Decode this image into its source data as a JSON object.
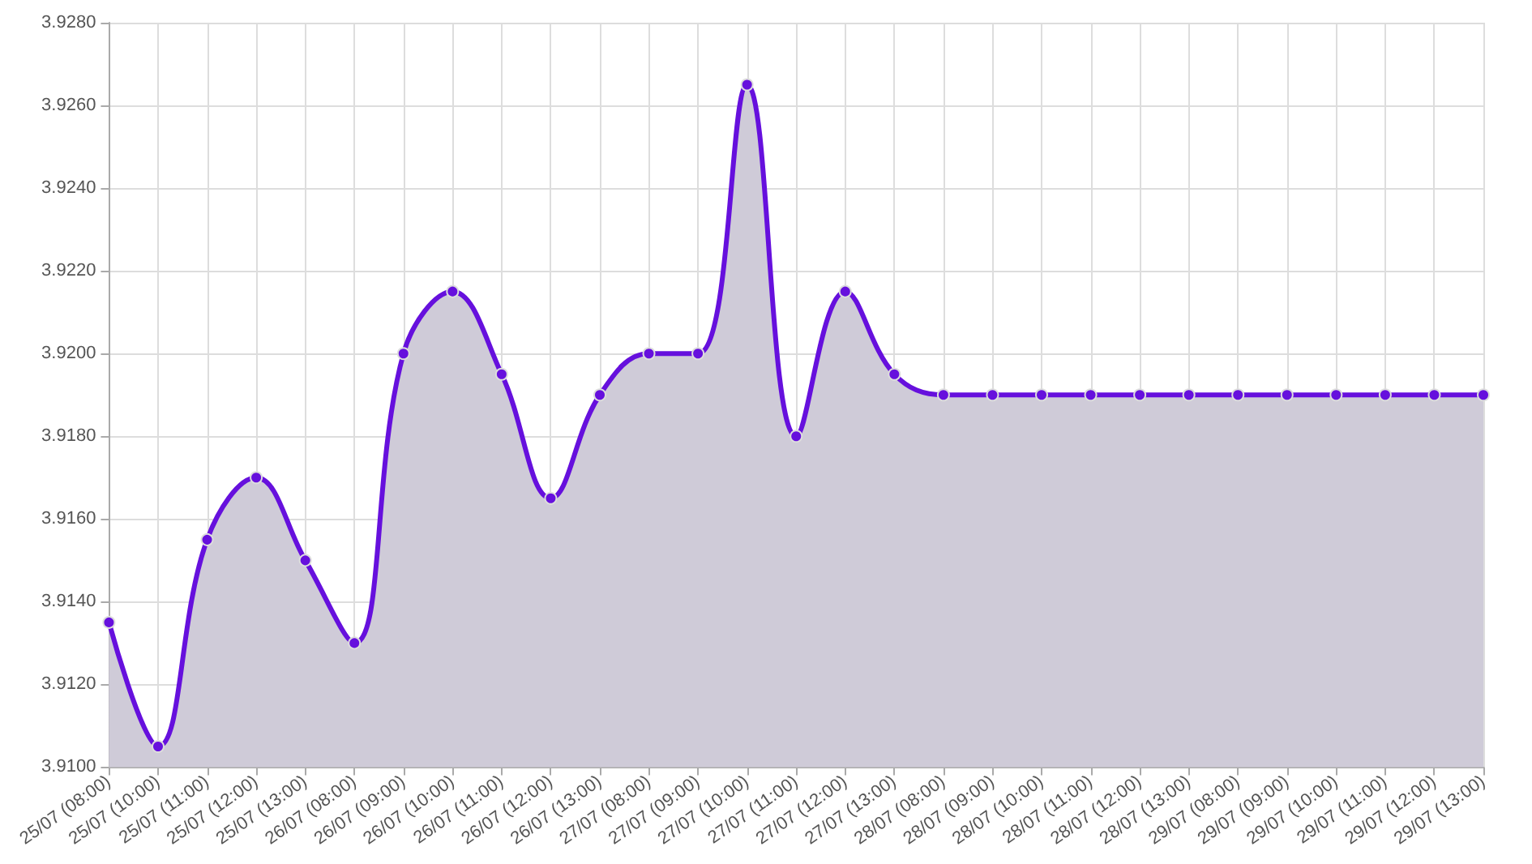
{
  "chart_data": {
    "type": "area",
    "categories": [
      "25/07 (08:00)",
      "25/07 (10:00)",
      "25/07 (11:00)",
      "25/07 (12:00)",
      "25/07 (13:00)",
      "26/07 (08:00)",
      "26/07 (09:00)",
      "26/07 (10:00)",
      "26/07 (11:00)",
      "26/07 (12:00)",
      "26/07 (13:00)",
      "27/07 (08:00)",
      "27/07 (09:00)",
      "27/07 (10:00)",
      "27/07 (11:00)",
      "27/07 (12:00)",
      "27/07 (13:00)",
      "28/07 (08:00)",
      "28/07 (09:00)",
      "28/07 (10:00)",
      "28/07 (11:00)",
      "28/07 (12:00)",
      "28/07 (13:00)",
      "29/07 (08:00)",
      "29/07 (09:00)",
      "29/07 (10:00)",
      "29/07 (11:00)",
      "29/07 (12:00)",
      "29/07 (13:00)"
    ],
    "series": [
      {
        "color": "#6610dd",
        "values": [
          3.9135,
          3.9105,
          3.9155,
          3.917,
          3.915,
          3.913,
          3.92,
          3.9215,
          3.9195,
          3.9165,
          3.919,
          3.92,
          3.92,
          3.9265,
          3.918,
          3.9215,
          3.9195,
          3.919,
          3.919,
          3.919,
          3.919,
          3.919,
          3.919,
          3.919,
          3.919,
          3.919,
          3.919,
          3.919,
          3.919
        ]
      }
    ],
    "ylim": [
      3.91,
      3.928
    ],
    "yticks": [
      {
        "value": 3.91,
        "label": "3.9100"
      },
      {
        "value": 3.912,
        "label": "3.9120"
      },
      {
        "value": 3.914,
        "label": "3.9140"
      },
      {
        "value": 3.916,
        "label": "3.9160"
      },
      {
        "value": 3.918,
        "label": "3.9180"
      },
      {
        "value": 3.92,
        "label": "3.9200"
      },
      {
        "value": 3.922,
        "label": "3.9220"
      },
      {
        "value": 3.924,
        "label": "3.9240"
      },
      {
        "value": 3.926,
        "label": "3.9260"
      },
      {
        "value": 3.928,
        "label": "3.9280"
      }
    ],
    "grid": true,
    "marker": "circle"
  }
}
